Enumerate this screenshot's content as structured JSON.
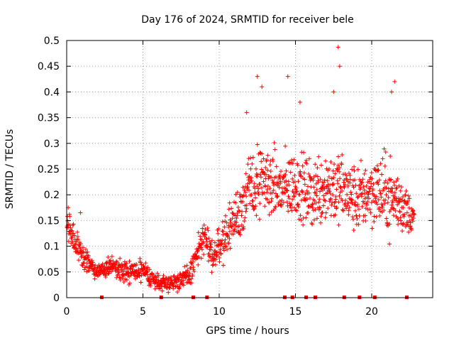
{
  "chart_data": {
    "type": "scatter",
    "title": "Day 176 of 2024, SRMTID for receiver bele",
    "xlabel": "GPS time / hours",
    "ylabel": "SRMTID / TECUs",
    "xlim": [
      0,
      24
    ],
    "ylim": [
      0,
      0.5
    ],
    "x_ticks": [
      0,
      5,
      10,
      15,
      20
    ],
    "x_tick_labels": [
      "0",
      "5",
      "10",
      "15",
      "20"
    ],
    "y_ticks": [
      0,
      0.05,
      0.1,
      0.15,
      0.2,
      0.25,
      0.3,
      0.35,
      0.4,
      0.45,
      0.5
    ],
    "y_tick_labels": [
      "0",
      "0.05",
      "0.1",
      "0.15",
      "0.2",
      "0.25",
      "0.3",
      "0.35",
      "0.4",
      "0.45",
      "0.5"
    ],
    "grid": true,
    "marker": "+",
    "series_color": "#ff0000",
    "trend": {
      "x": [
        0,
        0.5,
        1,
        2,
        3,
        4,
        5,
        6,
        7,
        8,
        8.5,
        9,
        9.5,
        10,
        11,
        12,
        13,
        14,
        15,
        16,
        17,
        18,
        19,
        20,
        21,
        22,
        22.8
      ],
      "y": [
        0.14,
        0.11,
        0.08,
        0.05,
        0.06,
        0.05,
        0.05,
        0.03,
        0.03,
        0.04,
        0.08,
        0.12,
        0.08,
        0.1,
        0.15,
        0.21,
        0.23,
        0.21,
        0.22,
        0.2,
        0.22,
        0.21,
        0.19,
        0.21,
        0.2,
        0.18,
        0.15
      ],
      "spread": [
        0.03,
        0.025,
        0.02,
        0.015,
        0.018,
        0.018,
        0.018,
        0.015,
        0.015,
        0.02,
        0.03,
        0.03,
        0.03,
        0.035,
        0.04,
        0.07,
        0.06,
        0.06,
        0.06,
        0.06,
        0.07,
        0.06,
        0.06,
        0.06,
        0.07,
        0.05,
        0.03
      ]
    },
    "notable_points": [
      {
        "x": 0.1,
        "y": 0.175
      },
      {
        "x": 0.9,
        "y": 0.165
      },
      {
        "x": 12.5,
        "y": 0.43
      },
      {
        "x": 14.5,
        "y": 0.43
      },
      {
        "x": 15.3,
        "y": 0.38
      },
      {
        "x": 17.5,
        "y": 0.4
      },
      {
        "x": 17.8,
        "y": 0.487
      },
      {
        "x": 17.9,
        "y": 0.45
      },
      {
        "x": 21.5,
        "y": 0.42
      },
      {
        "x": 21.3,
        "y": 0.4
      },
      {
        "x": 12.8,
        "y": 0.41
      },
      {
        "x": 11.8,
        "y": 0.36
      }
    ],
    "zero_markers_x": [
      2.3,
      6.2,
      8.3,
      9.2,
      14.3,
      14.8,
      15.7,
      16.3,
      18.2,
      19.2,
      20.2,
      22.3
    ]
  }
}
